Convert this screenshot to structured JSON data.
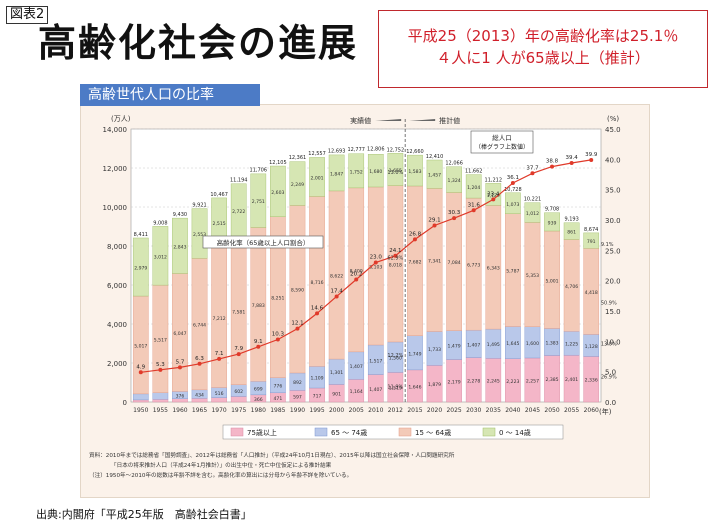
{
  "header": {
    "fig_label": "図表2",
    "title": "高齢化社会の進展",
    "note_line1": "平成25（2013）年の高齢化率は25.1％",
    "note_line2": "４人に1 人が65歳以上（推計）",
    "subtitle": "高齢世代人口の比率"
  },
  "source": "出典:内閣府「平成25年版　高齢社会白書」",
  "footnote_line1": "資料：2010年までは総務省「国勢調査」、2012年は総務省「人口推計」（平成24年10月1日現在）、2015年以降は国立社会保障・人口問題研究所",
  "footnote_line2": "「日本の将来推計人口（平成24年1月推計）」の出生中位・死亡中位仮定による推計結果",
  "footnote_line3": "（注）1950年～2010年の総数は年齢不詳を含む。高齢化率の算出には分母から年齢不詳を除いている。",
  "chart_data": {
    "type": "bar",
    "left_unit": "(万人)",
    "right_unit": "(%)",
    "y_left_ticks": [
      "0",
      "2,000",
      "4,000",
      "6,000",
      "8,000",
      "10,000",
      "12,000",
      "14,000"
    ],
    "y_right_ticks": [
      "0.0",
      "5.0",
      "10.0",
      "15.0",
      "20.0",
      "25.0",
      "30.0",
      "35.0",
      "40.0",
      "45.0"
    ],
    "ylim": [
      0,
      14000
    ],
    "y2lim": [
      0,
      45
    ],
    "year_unit": "(年)",
    "categories": [
      "1950",
      "1955",
      "1960",
      "1965",
      "1970",
      "1975",
      "1980",
      "1985",
      "1990",
      "1995",
      "2000",
      "2005",
      "2010",
      "2012",
      "2015",
      "2020",
      "2025",
      "2030",
      "2035",
      "2040",
      "2045",
      "2050",
      "2055",
      "2060"
    ],
    "series": [
      {
        "name": "75歳以上",
        "color": "#f4b6c8",
        "values": [
          107,
          139,
          164,
          189,
          224,
          284,
          366,
          471,
          597,
          717,
          901,
          1164,
          1407,
          1519,
          1646,
          1879,
          2179,
          2278,
          2245,
          2223,
          2257,
          2385,
          2401,
          2336
        ]
      },
      {
        "name": "65 ～ 74歳",
        "color": "#b9c8ea",
        "values": [
          309,
          338,
          376,
          434,
          516,
          602,
          699,
          776,
          892,
          1109,
          1301,
          1407,
          1517,
          1560,
          1749,
          1733,
          1479,
          1407,
          1495,
          1645,
          1600,
          1383,
          1225,
          1128
        ]
      },
      {
        "name": "15 ～ 64歳",
        "color": "#f3cab8",
        "values": [
          5017,
          5517,
          6047,
          6744,
          7212,
          7581,
          7883,
          8251,
          8590,
          8716,
          8622,
          8409,
          8103,
          8018,
          7682,
          7341,
          7084,
          6773,
          6343,
          5787,
          5353,
          5001,
          4706,
          4418
        ]
      },
      {
        "name": "0 ～ 14歳",
        "color": "#d6e6b3",
        "values": [
          2979,
          3012,
          2843,
          2553,
          2515,
          2722,
          2751,
          2603,
          2249,
          2001,
          1847,
          1752,
          1680,
          1655,
          1583,
          1457,
          1324,
          1204,
          1129,
          1073,
          1012,
          939,
          861,
          791
        ]
      }
    ],
    "totals": [
      8411,
      9008,
      9430,
      9921,
      10467,
      11194,
      11706,
      12105,
      12361,
      12557,
      12693,
      12777,
      12806,
      12752,
      12660,
      12410,
      12066,
      11662,
      11212,
      10728,
      10221,
      9708,
      9193,
      8674
    ],
    "aging_rate": [
      4.9,
      5.3,
      5.7,
      6.3,
      7.1,
      7.9,
      9.1,
      10.3,
      12.1,
      14.6,
      17.4,
      20.2,
      23.0,
      24.1,
      26.8,
      29.1,
      30.3,
      31.6,
      33.4,
      36.1,
      37.7,
      38.8,
      39.4,
      39.9
    ],
    "rate_labels": [
      "4.9",
      "5.3",
      "5.7",
      "6.3",
      "7.1",
      "7.9",
      "9.1",
      "10.3",
      "12.1",
      "14.6",
      "17.4",
      "20.2",
      "23.0",
      "24.1",
      "26.8",
      "29.1",
      "30.3",
      "31.6",
      "33.4",
      "36.1",
      "37.7",
      "38.8",
      "39.4",
      "39.9"
    ],
    "rate_series_name": "高齢化率（65歳以上人口割合）",
    "annot_total": [
      "総人口",
      "（棒グラフ上数値）"
    ],
    "period_actual": "実績値",
    "period_projection": "推計値",
    "share_2060": [
      "9.1%",
      "50.9%",
      "13.0%",
      "26.9%"
    ],
    "share_2012": [
      "13.0%",
      "62.9%",
      "12.2%",
      "11.9%"
    ],
    "legend_position": "bottom"
  }
}
